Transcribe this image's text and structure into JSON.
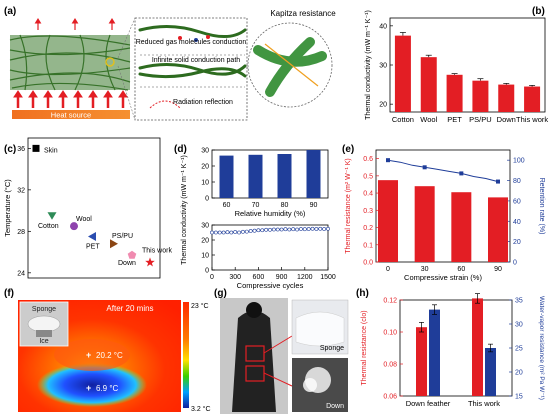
{
  "colors": {
    "red": "#e31e24",
    "blue": "#1f3d99",
    "green": "#2e8b2e",
    "grid": "#000000"
  },
  "panel_a": {
    "label": "(a)",
    "heat_source": "Heat source",
    "callouts": [
      "Reduced gas molecules conduction",
      "Infinite solid conduction path",
      "Radiation reflection"
    ],
    "kapitza": "Kapitza resistance"
  },
  "panel_f": {
    "label": "(f)",
    "sponge": "Sponge",
    "ice": "Ice",
    "time": "After 20 mins",
    "t_max": "23 °C",
    "t_min": "3.2 °C",
    "spot1": "20.2 °C",
    "spot2": "6.9 °C"
  },
  "panel_g": {
    "label": "(g)",
    "sponge": "Sponge",
    "down": "Down"
  },
  "chart_data": [
    {
      "id": "b",
      "label": "(b)",
      "type": "bar",
      "categories": [
        "Cotton",
        "Wool",
        "PET",
        "PS/PU",
        "Down",
        "This work"
      ],
      "values": [
        37.5,
        32,
        27.5,
        26,
        25,
        24.5
      ],
      "errors": [
        0.8,
        0.5,
        0.3,
        0.5,
        0.3,
        0.3
      ],
      "ylabel": "Thermal conductivity (mW m⁻¹ K⁻¹)",
      "ylim": [
        18,
        42
      ],
      "yticks": [
        20,
        30,
        40
      ]
    },
    {
      "id": "c",
      "label": "(c)",
      "type": "scatter",
      "ylabel": "Temperature (°C)",
      "ylim": [
        23.5,
        37
      ],
      "yticks": [
        24,
        28,
        32,
        36
      ],
      "points": [
        {
          "name": "Skin",
          "y": 36,
          "color": "#000000",
          "shape": "square"
        },
        {
          "name": "Cotton",
          "y": 29.5,
          "color": "#2e8b57",
          "shape": "tri-down"
        },
        {
          "name": "Wool",
          "y": 28.5,
          "color": "#8e44ad",
          "shape": "circle"
        },
        {
          "name": "PET",
          "y": 27.5,
          "color": "#2a4db0",
          "shape": "tri-left"
        },
        {
          "name": "PS/PU",
          "y": 26.8,
          "color": "#8b4513",
          "shape": "tri-right"
        },
        {
          "name": "Down",
          "y": 25.7,
          "color": "#f08bb0",
          "shape": "pentagon"
        },
        {
          "name": "This work",
          "y": 25,
          "color": "#e31e24",
          "shape": "star"
        }
      ]
    },
    {
      "id": "d",
      "label": "(d)",
      "type": "bar+scatter",
      "ylabel": "Thermal conductivity (mW m⁻¹ K⁻¹)",
      "top": {
        "categories": [
          "60",
          "70",
          "80",
          "90"
        ],
        "values": [
          26.5,
          27,
          27.5,
          30
        ],
        "ylim": [
          0,
          30
        ],
        "yticks": [
          0,
          10,
          20,
          30
        ],
        "xlabel": "Relative humidity (%)"
      },
      "bottom": {
        "x": [
          0,
          50,
          100,
          150,
          200,
          250,
          300,
          350,
          400,
          450,
          500,
          550,
          600,
          650,
          700,
          750,
          800,
          850,
          900,
          950,
          1000,
          1050,
          1100,
          1150,
          1200,
          1250,
          1300,
          1350,
          1400,
          1450,
          1500
        ],
        "y": [
          25,
          25,
          25,
          25,
          25.2,
          25,
          25.3,
          25,
          25.5,
          25.6,
          26,
          26.2,
          26.5,
          26.5,
          26.8,
          26.8,
          27,
          27,
          27,
          27.2,
          27,
          27.2,
          27,
          27.3,
          27.2,
          27.3,
          27.5,
          27.3,
          27.5,
          27.3,
          27.5
        ],
        "ylim": [
          0,
          30
        ],
        "yticks": [
          0,
          10,
          20,
          30
        ],
        "xlim": [
          0,
          1500
        ],
        "xticks": [
          0,
          300,
          600,
          900,
          1200,
          1500
        ],
        "xlabel": "Compressive cycles"
      }
    },
    {
      "id": "e",
      "label": "(e)",
      "type": "bar+line",
      "categories": [
        "0",
        "30",
        "60",
        "90"
      ],
      "bar_values": [
        0.475,
        0.44,
        0.405,
        0.375
      ],
      "bar_errors": [
        0.005,
        0.005,
        0.005,
        0.005
      ],
      "ylabel": "Thermal resistance (m² W⁻¹ K)",
      "ylim": [
        0,
        0.65
      ],
      "yticks": [
        0.0,
        0.1,
        0.2,
        0.3,
        0.4,
        0.5,
        0.6
      ],
      "line_x": [
        0,
        10,
        20,
        30,
        40,
        50,
        60,
        70,
        80,
        90
      ],
      "line_y": [
        100,
        98,
        95,
        93,
        91,
        89,
        87,
        84,
        82,
        79
      ],
      "y2label": "Retention rate (%)",
      "y2lim": [
        0,
        110
      ],
      "y2ticks": [
        0,
        20,
        40,
        60,
        80,
        100
      ],
      "xlabel": "Compressive strain (%)"
    },
    {
      "id": "h",
      "label": "(h)",
      "type": "bar",
      "categories": [
        "Down feather",
        "This work"
      ],
      "series": [
        {
          "name": "Thermal resistance",
          "values": [
            0.103,
            0.121
          ],
          "errors": [
            0.003,
            0.003
          ],
          "axis": "left"
        },
        {
          "name": "Water-vapor resistance",
          "values": [
            33,
            25
          ],
          "errors": [
            1,
            0.8
          ],
          "axis": "right"
        }
      ],
      "ylabel": "Thermal resistance (clo)",
      "ylim": [
        0.06,
        0.12
      ],
      "yticks": [
        0.06,
        0.08,
        0.1,
        0.12
      ],
      "y2label": "Water-vapor resistance (m² Pa W⁻¹)",
      "y2lim": [
        15,
        35
      ],
      "y2ticks": [
        15,
        20,
        25,
        30,
        35
      ]
    }
  ]
}
